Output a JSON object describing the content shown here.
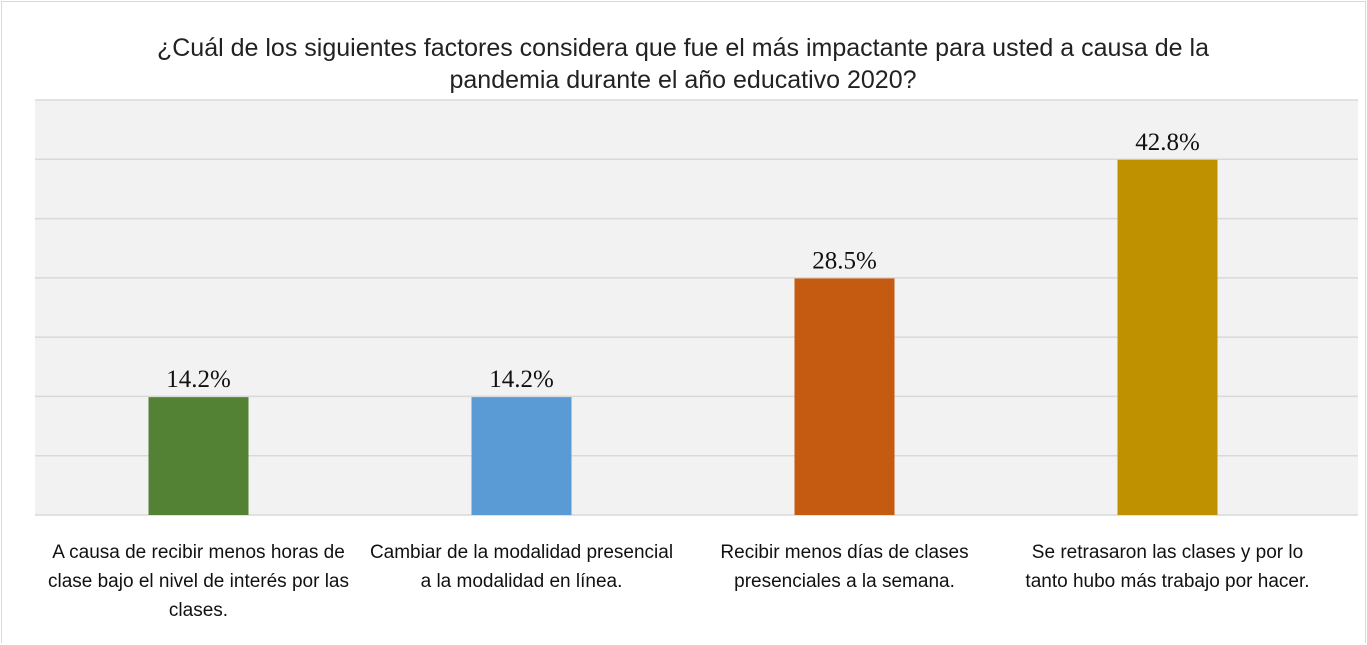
{
  "chart_data": {
    "type": "bar",
    "title": "¿Cuál de los siguientes factores considera que fue el más impactante para usted a causa de la pandemia durante el año educativo 2020?",
    "categories": [
      "A causa de recibir menos horas de clase bajo el nivel de interés por las clases.",
      "Cambiar de la modalidad presencial a la modalidad en línea.",
      "Recibir menos días de clases presenciales a la semana.",
      "Se retrasaron las clases y por lo tanto hubo más trabajo por hacer."
    ],
    "values": [
      14.2,
      14.2,
      28.5,
      42.8
    ],
    "value_labels": [
      "14.2%",
      "14.2%",
      "28.5%",
      "42.8%"
    ],
    "colors": [
      "#548235",
      "#5b9bd5",
      "#c55a11",
      "#bf9000"
    ],
    "ylim": [
      0,
      50
    ],
    "yticks": [
      0,
      7.14,
      14.29,
      21.43,
      28.57,
      35.71,
      42.86,
      50
    ],
    "grid": true
  }
}
